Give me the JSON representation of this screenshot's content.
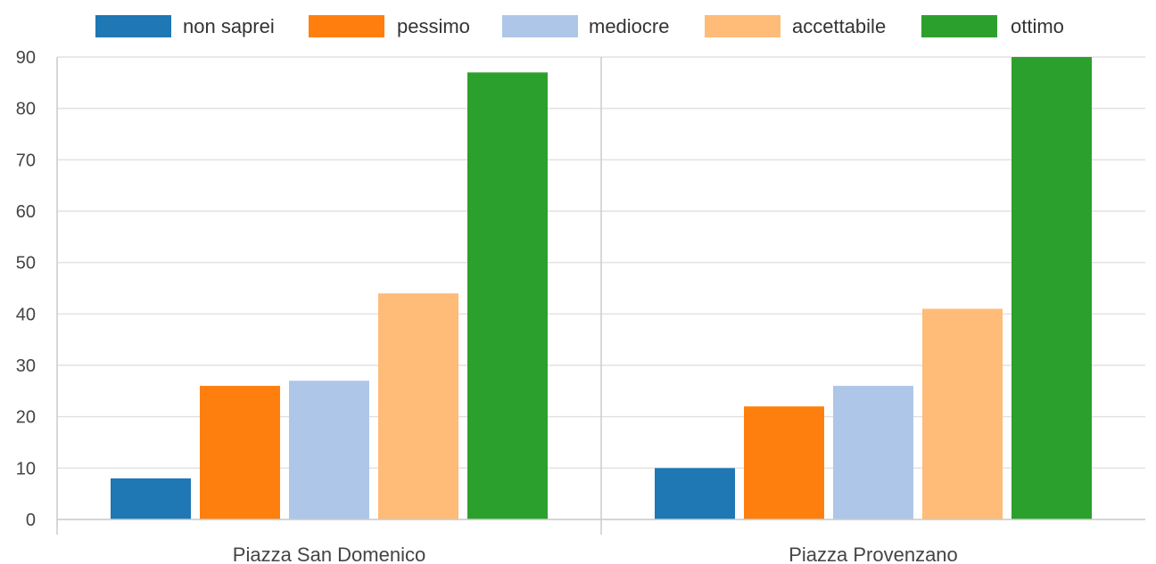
{
  "chart_data": {
    "type": "bar",
    "title": "",
    "xlabel": "",
    "ylabel": "",
    "categories": [
      "Piazza San Domenico",
      "Piazza Provenzano"
    ],
    "series": [
      {
        "name": "non saprei",
        "color": "#1f77b4",
        "values": [
          8,
          10
        ]
      },
      {
        "name": "pessimo",
        "color": "#ff7f0e",
        "values": [
          26,
          22
        ]
      },
      {
        "name": "mediocre",
        "color": "#aec7e8",
        "values": [
          27,
          26
        ]
      },
      {
        "name": "accettabile",
        "color": "#ffbb78",
        "values": [
          44,
          41
        ]
      },
      {
        "name": "ottimo",
        "color": "#2ca02c",
        "values": [
          87,
          90
        ]
      }
    ],
    "ylim": [
      0,
      90
    ],
    "yticks": [
      "0",
      "10",
      "20",
      "30",
      "40",
      "50",
      "60",
      "70",
      "80",
      "90"
    ],
    "grid": true,
    "legend": "top"
  }
}
